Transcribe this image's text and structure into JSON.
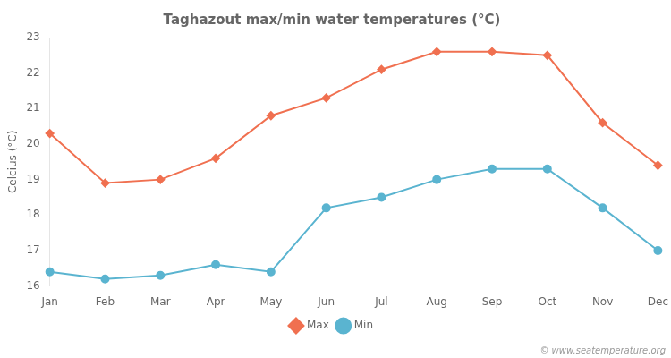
{
  "chart_data": {
    "type": "line",
    "title": "Taghazout max/min water temperatures (°C)",
    "ylabel": "Celcius (°C)",
    "categories": [
      "Jan",
      "Feb",
      "Mar",
      "Apr",
      "May",
      "Jun",
      "Jul",
      "Aug",
      "Sep",
      "Oct",
      "Nov",
      "Dec"
    ],
    "series": [
      {
        "name": "Max",
        "color": "#f07050",
        "marker": "diamond",
        "values": [
          20.3,
          18.9,
          19.0,
          19.6,
          20.8,
          21.3,
          22.1,
          22.6,
          22.6,
          22.5,
          20.6,
          19.4
        ]
      },
      {
        "name": "Min",
        "color": "#5ab4d0",
        "marker": "circle",
        "values": [
          16.4,
          16.2,
          16.3,
          16.6,
          16.4,
          18.2,
          18.5,
          19.0,
          19.3,
          19.3,
          18.2,
          17.0
        ]
      }
    ],
    "ylim": [
      16,
      23
    ],
    "yticks": [
      16,
      17,
      18,
      19,
      20,
      21,
      22,
      23
    ],
    "grid": false,
    "legend": "bottom",
    "annotations": [
      "© www.seatemperature.org"
    ]
  }
}
